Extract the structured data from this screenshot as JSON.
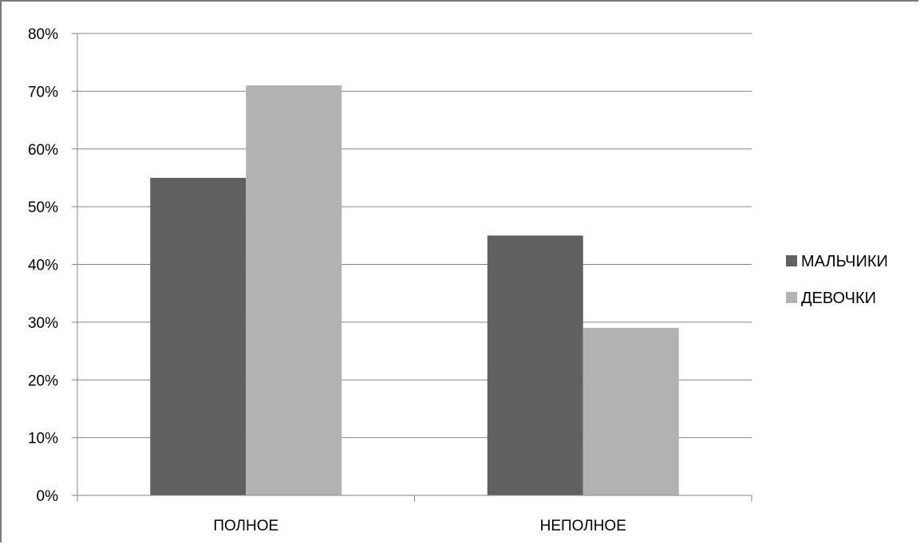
{
  "chart_data": {
    "type": "bar",
    "categories": [
      "ПОЛНОЕ",
      "НЕПОЛНОЕ"
    ],
    "series": [
      {
        "name": "МАЛЬЧИКИ",
        "values": [
          0.55,
          0.45
        ],
        "color": "#616161"
      },
      {
        "name": "ДЕВОЧКИ",
        "values": [
          0.71,
          0.29
        ],
        "color": "#b2b2b2"
      }
    ],
    "ylim": [
      0,
      0.8
    ],
    "yticks": [
      "0%",
      "10%",
      "20%",
      "30%",
      "40%",
      "50%",
      "60%",
      "70%",
      "80%"
    ],
    "grid": true,
    "legend_position": "right",
    "gridline_color": "#868686",
    "axis_color": "#868686"
  }
}
